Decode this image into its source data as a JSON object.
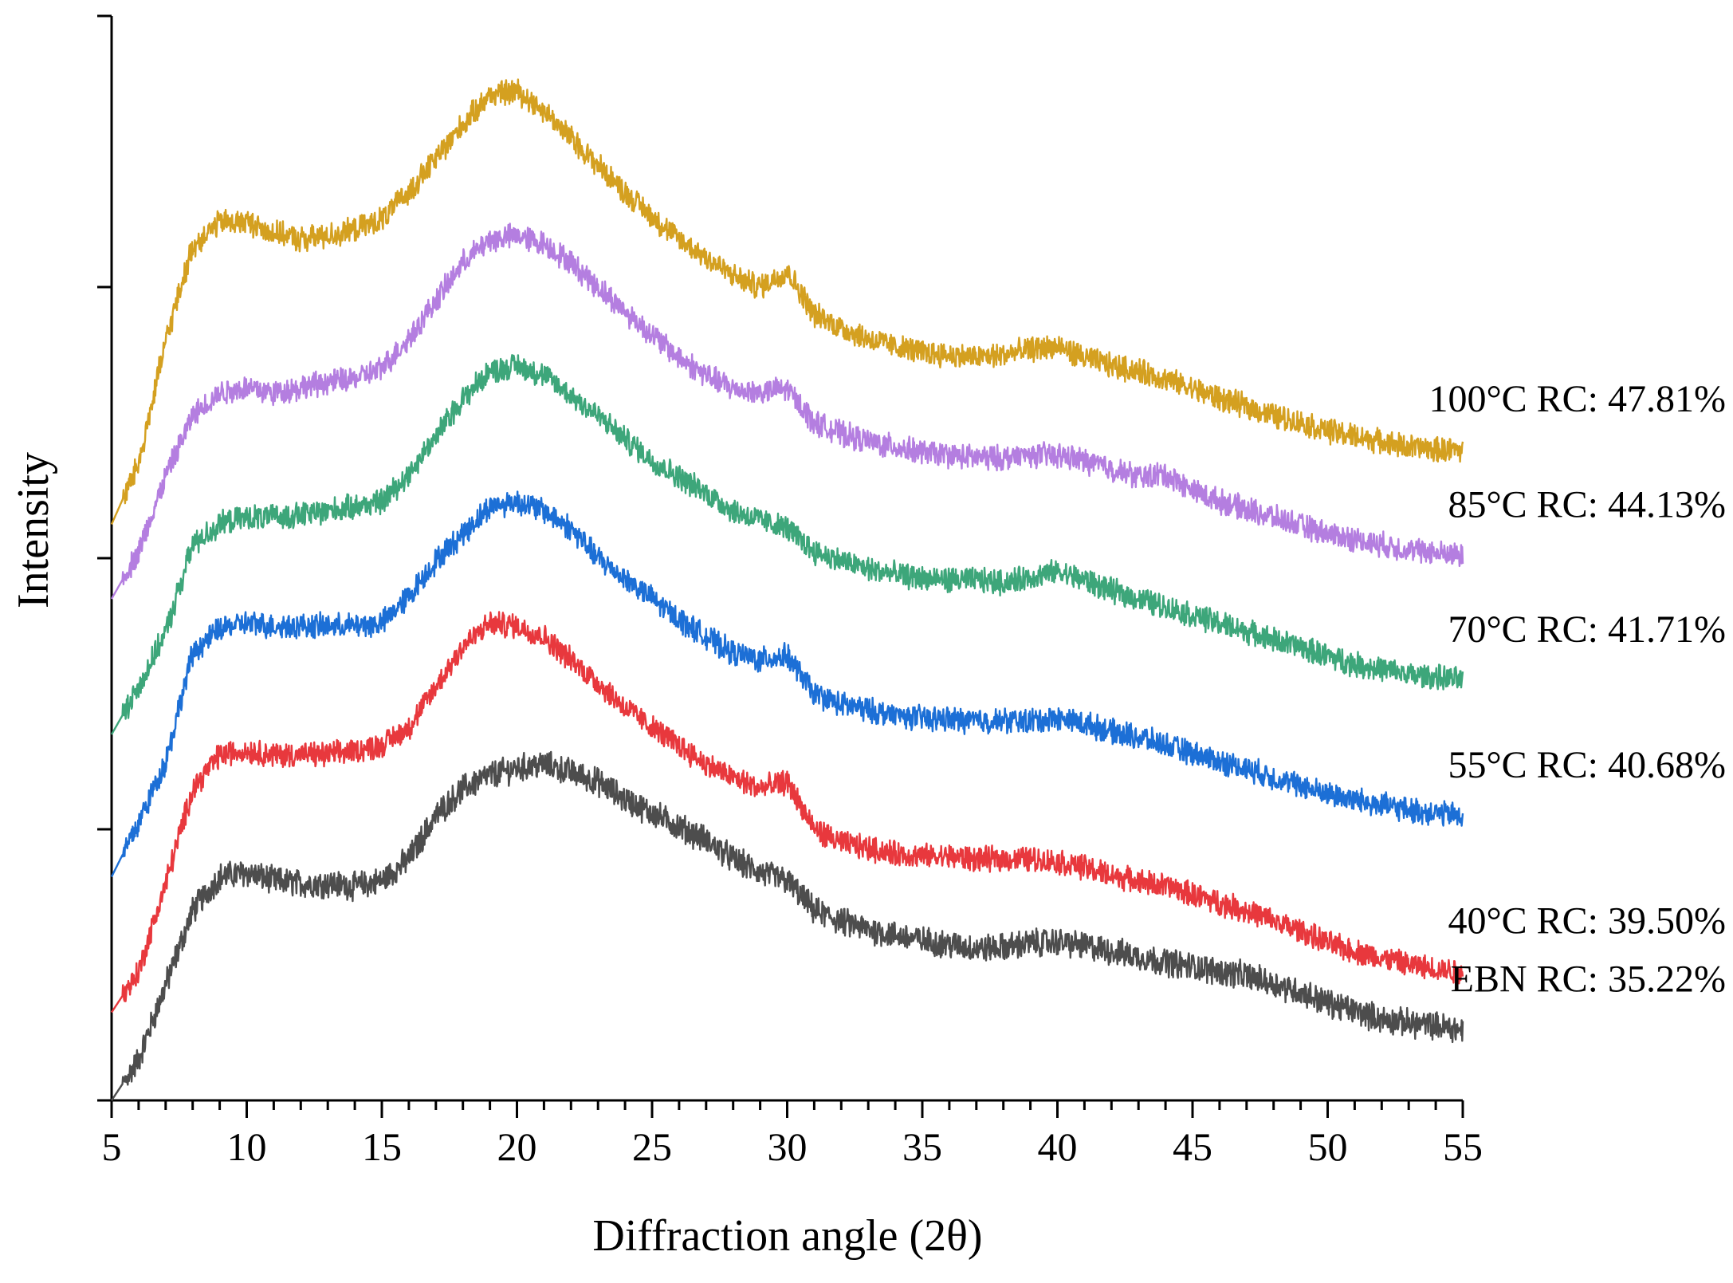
{
  "chart_data": {
    "type": "line",
    "title": "",
    "xlabel": "Diffraction angle (2θ)",
    "ylabel": "Intensity",
    "xlim": [
      5,
      55
    ],
    "ylim": [
      0,
      8
    ],
    "xticks": [
      5,
      10,
      15,
      20,
      25,
      30,
      35,
      40,
      45,
      50,
      55
    ],
    "x_tick_labels": [
      "5",
      "10",
      "15",
      "20",
      "25",
      "30",
      "35",
      "40",
      "45",
      "50",
      "55"
    ],
    "y_tick_labels_shown": false,
    "grid": false,
    "legend": "inline-right",
    "series": [
      {
        "name": "EBN RC: 35.22%",
        "color": "#4d4d4d",
        "noise": 0.09,
        "points": [
          [
            5,
            0.0
          ],
          [
            6,
            0.3
          ],
          [
            7,
            0.85
          ],
          [
            8,
            1.4
          ],
          [
            9,
            1.65
          ],
          [
            10,
            1.68
          ],
          [
            11,
            1.62
          ],
          [
            12,
            1.6
          ],
          [
            13,
            1.6
          ],
          [
            14,
            1.58
          ],
          [
            15,
            1.62
          ],
          [
            16,
            1.78
          ],
          [
            17,
            2.1
          ],
          [
            18,
            2.3
          ],
          [
            19,
            2.4
          ],
          [
            20,
            2.45
          ],
          [
            21,
            2.48
          ],
          [
            22,
            2.42
          ],
          [
            23,
            2.35
          ],
          [
            24,
            2.22
          ],
          [
            25,
            2.12
          ],
          [
            26,
            2.02
          ],
          [
            27,
            1.92
          ],
          [
            28,
            1.78
          ],
          [
            29,
            1.68
          ],
          [
            30,
            1.62
          ],
          [
            31,
            1.4
          ],
          [
            32,
            1.32
          ],
          [
            33,
            1.26
          ],
          [
            34,
            1.22
          ],
          [
            35,
            1.18
          ],
          [
            36,
            1.15
          ],
          [
            37,
            1.12
          ],
          [
            38,
            1.13
          ],
          [
            39,
            1.16
          ],
          [
            40,
            1.17
          ],
          [
            41,
            1.14
          ],
          [
            42,
            1.1
          ],
          [
            43,
            1.06
          ],
          [
            44,
            1.02
          ],
          [
            45,
            0.99
          ],
          [
            46,
            0.95
          ],
          [
            47,
            0.92
          ],
          [
            48,
            0.86
          ],
          [
            49,
            0.8
          ],
          [
            50,
            0.72
          ],
          [
            51,
            0.66
          ],
          [
            52,
            0.6
          ],
          [
            53,
            0.57
          ],
          [
            54,
            0.55
          ],
          [
            55,
            0.52
          ]
        ]
      },
      {
        "name": "40°C RC: 39.50%",
        "color": "#e8383d",
        "noise": 0.08,
        "points": [
          [
            5,
            0.65
          ],
          [
            6,
            0.95
          ],
          [
            7,
            1.6
          ],
          [
            8,
            2.3
          ],
          [
            9,
            2.55
          ],
          [
            10,
            2.58
          ],
          [
            11,
            2.55
          ],
          [
            12,
            2.55
          ],
          [
            13,
            2.55
          ],
          [
            14,
            2.58
          ],
          [
            15,
            2.62
          ],
          [
            16,
            2.75
          ],
          [
            17,
            3.05
          ],
          [
            18,
            3.35
          ],
          [
            19,
            3.52
          ],
          [
            20,
            3.5
          ],
          [
            21,
            3.42
          ],
          [
            22,
            3.25
          ],
          [
            23,
            3.08
          ],
          [
            24,
            2.9
          ],
          [
            25,
            2.75
          ],
          [
            26,
            2.62
          ],
          [
            27,
            2.48
          ],
          [
            28,
            2.38
          ],
          [
            29,
            2.3
          ],
          [
            30,
            2.35
          ],
          [
            31,
            2.0
          ],
          [
            32,
            1.9
          ],
          [
            33,
            1.86
          ],
          [
            34,
            1.82
          ],
          [
            35,
            1.8
          ],
          [
            36,
            1.8
          ],
          [
            37,
            1.78
          ],
          [
            38,
            1.78
          ],
          [
            39,
            1.78
          ],
          [
            40,
            1.76
          ],
          [
            41,
            1.72
          ],
          [
            42,
            1.66
          ],
          [
            43,
            1.62
          ],
          [
            44,
            1.58
          ],
          [
            45,
            1.52
          ],
          [
            46,
            1.46
          ],
          [
            47,
            1.4
          ],
          [
            48,
            1.32
          ],
          [
            49,
            1.25
          ],
          [
            50,
            1.16
          ],
          [
            51,
            1.1
          ],
          [
            52,
            1.05
          ],
          [
            53,
            1.0
          ],
          [
            54,
            0.97
          ],
          [
            55,
            0.95
          ]
        ]
      },
      {
        "name": "55°C RC: 40.68%",
        "color": "#1c6fd6",
        "noise": 0.08,
        "points": [
          [
            5,
            1.65
          ],
          [
            6,
            2.05
          ],
          [
            7,
            2.5
          ],
          [
            8,
            3.3
          ],
          [
            9,
            3.48
          ],
          [
            10,
            3.52
          ],
          [
            11,
            3.5
          ],
          [
            12,
            3.5
          ],
          [
            13,
            3.5
          ],
          [
            14,
            3.5
          ],
          [
            15,
            3.52
          ],
          [
            16,
            3.72
          ],
          [
            17,
            3.98
          ],
          [
            18,
            4.18
          ],
          [
            19,
            4.38
          ],
          [
            20,
            4.42
          ],
          [
            21,
            4.35
          ],
          [
            22,
            4.22
          ],
          [
            23,
            4.0
          ],
          [
            24,
            3.85
          ],
          [
            25,
            3.7
          ],
          [
            26,
            3.55
          ],
          [
            27,
            3.42
          ],
          [
            28,
            3.3
          ],
          [
            29,
            3.25
          ],
          [
            30,
            3.28
          ],
          [
            31,
            3.0
          ],
          [
            32,
            2.92
          ],
          [
            33,
            2.88
          ],
          [
            34,
            2.84
          ],
          [
            35,
            2.82
          ],
          [
            36,
            2.81
          ],
          [
            37,
            2.8
          ],
          [
            38,
            2.8
          ],
          [
            39,
            2.8
          ],
          [
            40,
            2.82
          ],
          [
            41,
            2.78
          ],
          [
            42,
            2.72
          ],
          [
            43,
            2.68
          ],
          [
            44,
            2.62
          ],
          [
            45,
            2.56
          ],
          [
            46,
            2.5
          ],
          [
            47,
            2.45
          ],
          [
            48,
            2.38
          ],
          [
            49,
            2.32
          ],
          [
            50,
            2.26
          ],
          [
            51,
            2.22
          ],
          [
            52,
            2.18
          ],
          [
            53,
            2.14
          ],
          [
            54,
            2.12
          ],
          [
            55,
            2.1
          ]
        ]
      },
      {
        "name": "70°C RC: 41.71%",
        "color": "#3da67a",
        "noise": 0.08,
        "points": [
          [
            5,
            2.7
          ],
          [
            6,
            3.05
          ],
          [
            7,
            3.45
          ],
          [
            8,
            4.1
          ],
          [
            9,
            4.25
          ],
          [
            10,
            4.3
          ],
          [
            11,
            4.3
          ],
          [
            12,
            4.32
          ],
          [
            13,
            4.35
          ],
          [
            14,
            4.38
          ],
          [
            15,
            4.42
          ],
          [
            16,
            4.62
          ],
          [
            17,
            4.9
          ],
          [
            18,
            5.18
          ],
          [
            19,
            5.38
          ],
          [
            20,
            5.42
          ],
          [
            21,
            5.35
          ],
          [
            22,
            5.2
          ],
          [
            23,
            5.05
          ],
          [
            24,
            4.88
          ],
          [
            25,
            4.72
          ],
          [
            26,
            4.6
          ],
          [
            27,
            4.48
          ],
          [
            28,
            4.35
          ],
          [
            29,
            4.28
          ],
          [
            30,
            4.22
          ],
          [
            31,
            4.05
          ],
          [
            32,
            3.98
          ],
          [
            33,
            3.92
          ],
          [
            34,
            3.88
          ],
          [
            35,
            3.85
          ],
          [
            36,
            3.84
          ],
          [
            37,
            3.84
          ],
          [
            38,
            3.82
          ],
          [
            39,
            3.86
          ],
          [
            40,
            3.9
          ],
          [
            41,
            3.84
          ],
          [
            42,
            3.76
          ],
          [
            43,
            3.7
          ],
          [
            44,
            3.64
          ],
          [
            45,
            3.58
          ],
          [
            46,
            3.52
          ],
          [
            47,
            3.46
          ],
          [
            48,
            3.4
          ],
          [
            49,
            3.34
          ],
          [
            50,
            3.28
          ],
          [
            51,
            3.22
          ],
          [
            52,
            3.18
          ],
          [
            53,
            3.14
          ],
          [
            54,
            3.12
          ],
          [
            55,
            3.1
          ]
        ]
      },
      {
        "name": "85°C RC: 44.13%",
        "color": "#b47ee0",
        "noise": 0.08,
        "points": [
          [
            5,
            3.7
          ],
          [
            6,
            4.05
          ],
          [
            7,
            4.6
          ],
          [
            8,
            5.05
          ],
          [
            9,
            5.22
          ],
          [
            10,
            5.26
          ],
          [
            11,
            5.22
          ],
          [
            12,
            5.26
          ],
          [
            13,
            5.3
          ],
          [
            14,
            5.32
          ],
          [
            15,
            5.4
          ],
          [
            16,
            5.62
          ],
          [
            17,
            5.9
          ],
          [
            18,
            6.18
          ],
          [
            19,
            6.35
          ],
          [
            20,
            6.38
          ],
          [
            21,
            6.32
          ],
          [
            22,
            6.18
          ],
          [
            23,
            6.0
          ],
          [
            24,
            5.82
          ],
          [
            25,
            5.65
          ],
          [
            26,
            5.48
          ],
          [
            27,
            5.35
          ],
          [
            28,
            5.25
          ],
          [
            29,
            5.22
          ],
          [
            30,
            5.25
          ],
          [
            31,
            5.0
          ],
          [
            32,
            4.92
          ],
          [
            33,
            4.86
          ],
          [
            34,
            4.82
          ],
          [
            35,
            4.78
          ],
          [
            36,
            4.76
          ],
          [
            37,
            4.74
          ],
          [
            38,
            4.74
          ],
          [
            39,
            4.76
          ],
          [
            40,
            4.76
          ],
          [
            41,
            4.72
          ],
          [
            42,
            4.66
          ],
          [
            43,
            4.6
          ],
          [
            44,
            4.62
          ],
          [
            45,
            4.5
          ],
          [
            46,
            4.42
          ],
          [
            47,
            4.36
          ],
          [
            48,
            4.3
          ],
          [
            49,
            4.24
          ],
          [
            50,
            4.18
          ],
          [
            51,
            4.14
          ],
          [
            52,
            4.1
          ],
          [
            53,
            4.06
          ],
          [
            54,
            4.04
          ],
          [
            55,
            4.02
          ]
        ]
      },
      {
        "name": "100°C RC: 47.81%",
        "color": "#d4a020",
        "noise": 0.08,
        "points": [
          [
            5,
            4.25
          ],
          [
            6,
            4.7
          ],
          [
            7,
            5.6
          ],
          [
            8,
            6.3
          ],
          [
            9,
            6.48
          ],
          [
            10,
            6.48
          ],
          [
            11,
            6.4
          ],
          [
            12,
            6.35
          ],
          [
            13,
            6.38
          ],
          [
            14,
            6.42
          ],
          [
            15,
            6.5
          ],
          [
            16,
            6.7
          ],
          [
            17,
            6.95
          ],
          [
            18,
            7.2
          ],
          [
            19,
            7.42
          ],
          [
            20,
            7.45
          ],
          [
            21,
            7.3
          ],
          [
            22,
            7.1
          ],
          [
            23,
            6.9
          ],
          [
            24,
            6.7
          ],
          [
            25,
            6.52
          ],
          [
            26,
            6.35
          ],
          [
            27,
            6.22
          ],
          [
            28,
            6.08
          ],
          [
            29,
            6.0
          ],
          [
            30,
            6.12
          ],
          [
            31,
            5.8
          ],
          [
            32,
            5.7
          ],
          [
            33,
            5.62
          ],
          [
            34,
            5.56
          ],
          [
            35,
            5.52
          ],
          [
            36,
            5.5
          ],
          [
            37,
            5.48
          ],
          [
            38,
            5.5
          ],
          [
            39,
            5.54
          ],
          [
            40,
            5.56
          ],
          [
            41,
            5.48
          ],
          [
            42,
            5.42
          ],
          [
            43,
            5.38
          ],
          [
            44,
            5.32
          ],
          [
            45,
            5.25
          ],
          [
            46,
            5.18
          ],
          [
            47,
            5.12
          ],
          [
            48,
            5.05
          ],
          [
            49,
            5.0
          ],
          [
            50,
            4.94
          ],
          [
            51,
            4.9
          ],
          [
            52,
            4.86
          ],
          [
            53,
            4.82
          ],
          [
            54,
            4.8
          ],
          [
            55,
            4.8
          ]
        ]
      }
    ]
  }
}
